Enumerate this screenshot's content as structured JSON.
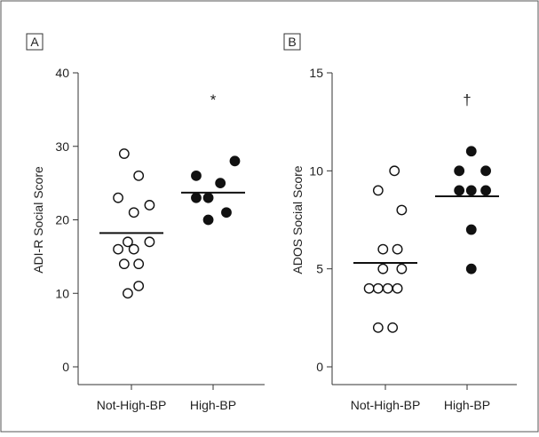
{
  "chart_data": [
    {
      "type": "scatter",
      "panel_label": "A",
      "ylabel": "ADI-R Social Score",
      "ylim": [
        0,
        40
      ],
      "yticks": [
        "0",
        "10",
        "20",
        "30",
        "40"
      ],
      "categories": [
        "Not-High-BP",
        "High-BP"
      ],
      "significance_marker": "*",
      "series": [
        {
          "category": "Not-High-BP",
          "marker": "open-circle",
          "points": [
            {
              "offset": -0.12,
              "y": 29
            },
            {
              "offset": 0.12,
              "y": 26
            },
            {
              "offset": -0.22,
              "y": 23
            },
            {
              "offset": 0.3,
              "y": 22
            },
            {
              "offset": 0.04,
              "y": 21
            },
            {
              "offset": -0.06,
              "y": 17
            },
            {
              "offset": 0.3,
              "y": 17
            },
            {
              "offset": -0.22,
              "y": 16
            },
            {
              "offset": 0.04,
              "y": 16
            },
            {
              "offset": -0.12,
              "y": 14
            },
            {
              "offset": 0.12,
              "y": 14
            },
            {
              "offset": 0.12,
              "y": 11
            },
            {
              "offset": -0.06,
              "y": 10
            }
          ],
          "mean": 18.2
        },
        {
          "category": "High-BP",
          "marker": "filled-circle",
          "points": [
            {
              "offset": 0.36,
              "y": 28
            },
            {
              "offset": -0.28,
              "y": 26
            },
            {
              "offset": 0.12,
              "y": 25
            },
            {
              "offset": -0.28,
              "y": 23
            },
            {
              "offset": -0.08,
              "y": 23
            },
            {
              "offset": 0.22,
              "y": 21
            },
            {
              "offset": -0.08,
              "y": 20
            }
          ],
          "mean": 23.7
        }
      ]
    },
    {
      "type": "scatter",
      "panel_label": "B",
      "ylabel": "ADOS Social Score",
      "ylim": [
        0,
        15
      ],
      "yticks": [
        "0",
        "5",
        "10",
        "15"
      ],
      "categories": [
        "Not-High-BP",
        "High-BP"
      ],
      "significance_marker": "†",
      "series": [
        {
          "category": "Not-High-BP",
          "marker": "open-circle",
          "points": [
            {
              "offset": 0.15,
              "y": 10
            },
            {
              "offset": -0.12,
              "y": 9
            },
            {
              "offset": 0.27,
              "y": 8
            },
            {
              "offset": -0.04,
              "y": 6
            },
            {
              "offset": 0.2,
              "y": 6
            },
            {
              "offset": -0.04,
              "y": 5
            },
            {
              "offset": 0.27,
              "y": 5
            },
            {
              "offset": -0.27,
              "y": 4
            },
            {
              "offset": -0.12,
              "y": 4
            },
            {
              "offset": 0.04,
              "y": 4
            },
            {
              "offset": 0.2,
              "y": 4
            },
            {
              "offset": -0.12,
              "y": 2
            },
            {
              "offset": 0.12,
              "y": 2
            }
          ],
          "mean": 5.3
        },
        {
          "category": "High-BP",
          "marker": "filled-circle",
          "points": [
            {
              "offset": 0.07,
              "y": 11
            },
            {
              "offset": -0.13,
              "y": 10
            },
            {
              "offset": 0.31,
              "y": 10
            },
            {
              "offset": -0.13,
              "y": 9
            },
            {
              "offset": 0.07,
              "y": 9
            },
            {
              "offset": 0.31,
              "y": 9
            },
            {
              "offset": 0.07,
              "y": 7
            },
            {
              "offset": 0.07,
              "y": 5
            }
          ],
          "mean": 8.7
        }
      ]
    }
  ]
}
